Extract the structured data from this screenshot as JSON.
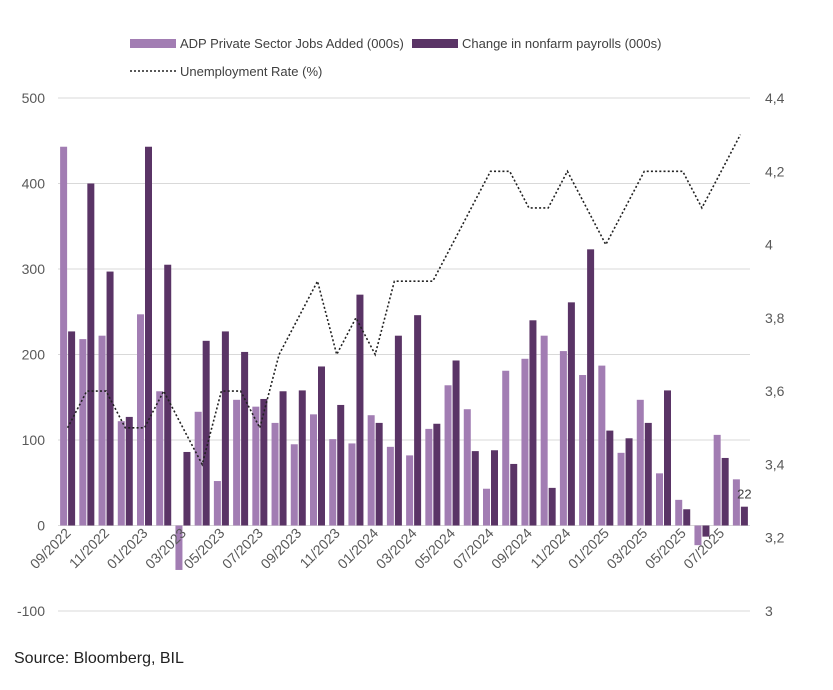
{
  "legend": {
    "adp": "ADP Private Sector Jobs Added (000s)",
    "nfp": "Change in nonfarm payrolls (000s)",
    "unemployment": "Unemployment Rate (%)"
  },
  "source": "Source: Bloomberg, BIL",
  "chart_data": {
    "type": "bar",
    "categories": [
      "09/2022",
      "10/2022",
      "11/2022",
      "12/2022",
      "01/2023",
      "02/2023",
      "03/2023",
      "04/2023",
      "05/2023",
      "06/2023",
      "07/2023",
      "08/2023",
      "09/2023",
      "10/2023",
      "11/2023",
      "12/2023",
      "01/2024",
      "02/2024",
      "03/2024",
      "04/2024",
      "05/2024",
      "06/2024",
      "07/2024",
      "08/2024",
      "09/2024",
      "10/2024",
      "11/2024",
      "12/2024",
      "01/2025",
      "02/2025",
      "03/2025",
      "04/2025",
      "05/2025",
      "06/2025",
      "07/2025",
      "08/2025"
    ],
    "x_tick_labels": [
      "09/2022",
      "11/2022",
      "01/2023",
      "03/2023",
      "05/2023",
      "07/2023",
      "09/2023",
      "11/2023",
      "01/2024",
      "03/2024",
      "05/2024",
      "07/2024",
      "09/2024",
      "11/2024",
      "01/2025",
      "03/2025",
      "05/2025",
      "07/2025"
    ],
    "series": [
      {
        "name": "ADP Private Sector Jobs Added (000s)",
        "color": "#a27db3",
        "axis": "left",
        "values": [
          443,
          218,
          222,
          122,
          247,
          157,
          -52,
          133,
          52,
          147,
          139,
          120,
          95,
          130,
          101,
          96,
          129,
          92,
          82,
          113,
          164,
          136,
          43,
          181,
          195,
          222,
          204,
          176,
          187,
          85,
          147,
          61,
          30,
          -23,
          106,
          54
        ]
      },
      {
        "name": "Change in nonfarm payrolls (000s)",
        "color": "#5a3466",
        "axis": "left",
        "values": [
          227,
          400,
          297,
          127,
          443,
          305,
          86,
          216,
          227,
          203,
          148,
          157,
          158,
          186,
          141,
          270,
          120,
          222,
          246,
          119,
          193,
          87,
          88,
          72,
          240,
          44,
          261,
          323,
          111,
          102,
          120,
          158,
          19,
          -13,
          79,
          22
        ]
      },
      {
        "name": "Unemployment Rate (%)",
        "color": "#222222",
        "axis": "right",
        "style": "dotted",
        "values": [
          3.5,
          3.6,
          3.6,
          3.5,
          3.5,
          3.6,
          3.5,
          3.4,
          3.6,
          3.6,
          3.5,
          3.7,
          3.8,
          3.9,
          3.7,
          3.8,
          3.7,
          3.9,
          3.9,
          3.9,
          4.0,
          4.1,
          4.2,
          4.2,
          4.1,
          4.1,
          4.2,
          4.1,
          4.0,
          4.1,
          4.2,
          4.2,
          4.2,
          4.1,
          4.2,
          4.3
        ]
      }
    ],
    "y_left": {
      "min": -100,
      "max": 500,
      "ticks": [
        -100,
        0,
        100,
        200,
        300,
        400,
        500
      ]
    },
    "y_right": {
      "min": 3,
      "max": 4.4,
      "ticks": [
        "3",
        "3,2",
        "3,4",
        "3,6",
        "3,8",
        "4",
        "4,2",
        "4,4"
      ]
    },
    "data_labels": [
      {
        "series": "Change in nonfarm payrolls (000s)",
        "category": "08/2025",
        "text": "22"
      }
    ],
    "grid": true,
    "legend_position": "top"
  }
}
